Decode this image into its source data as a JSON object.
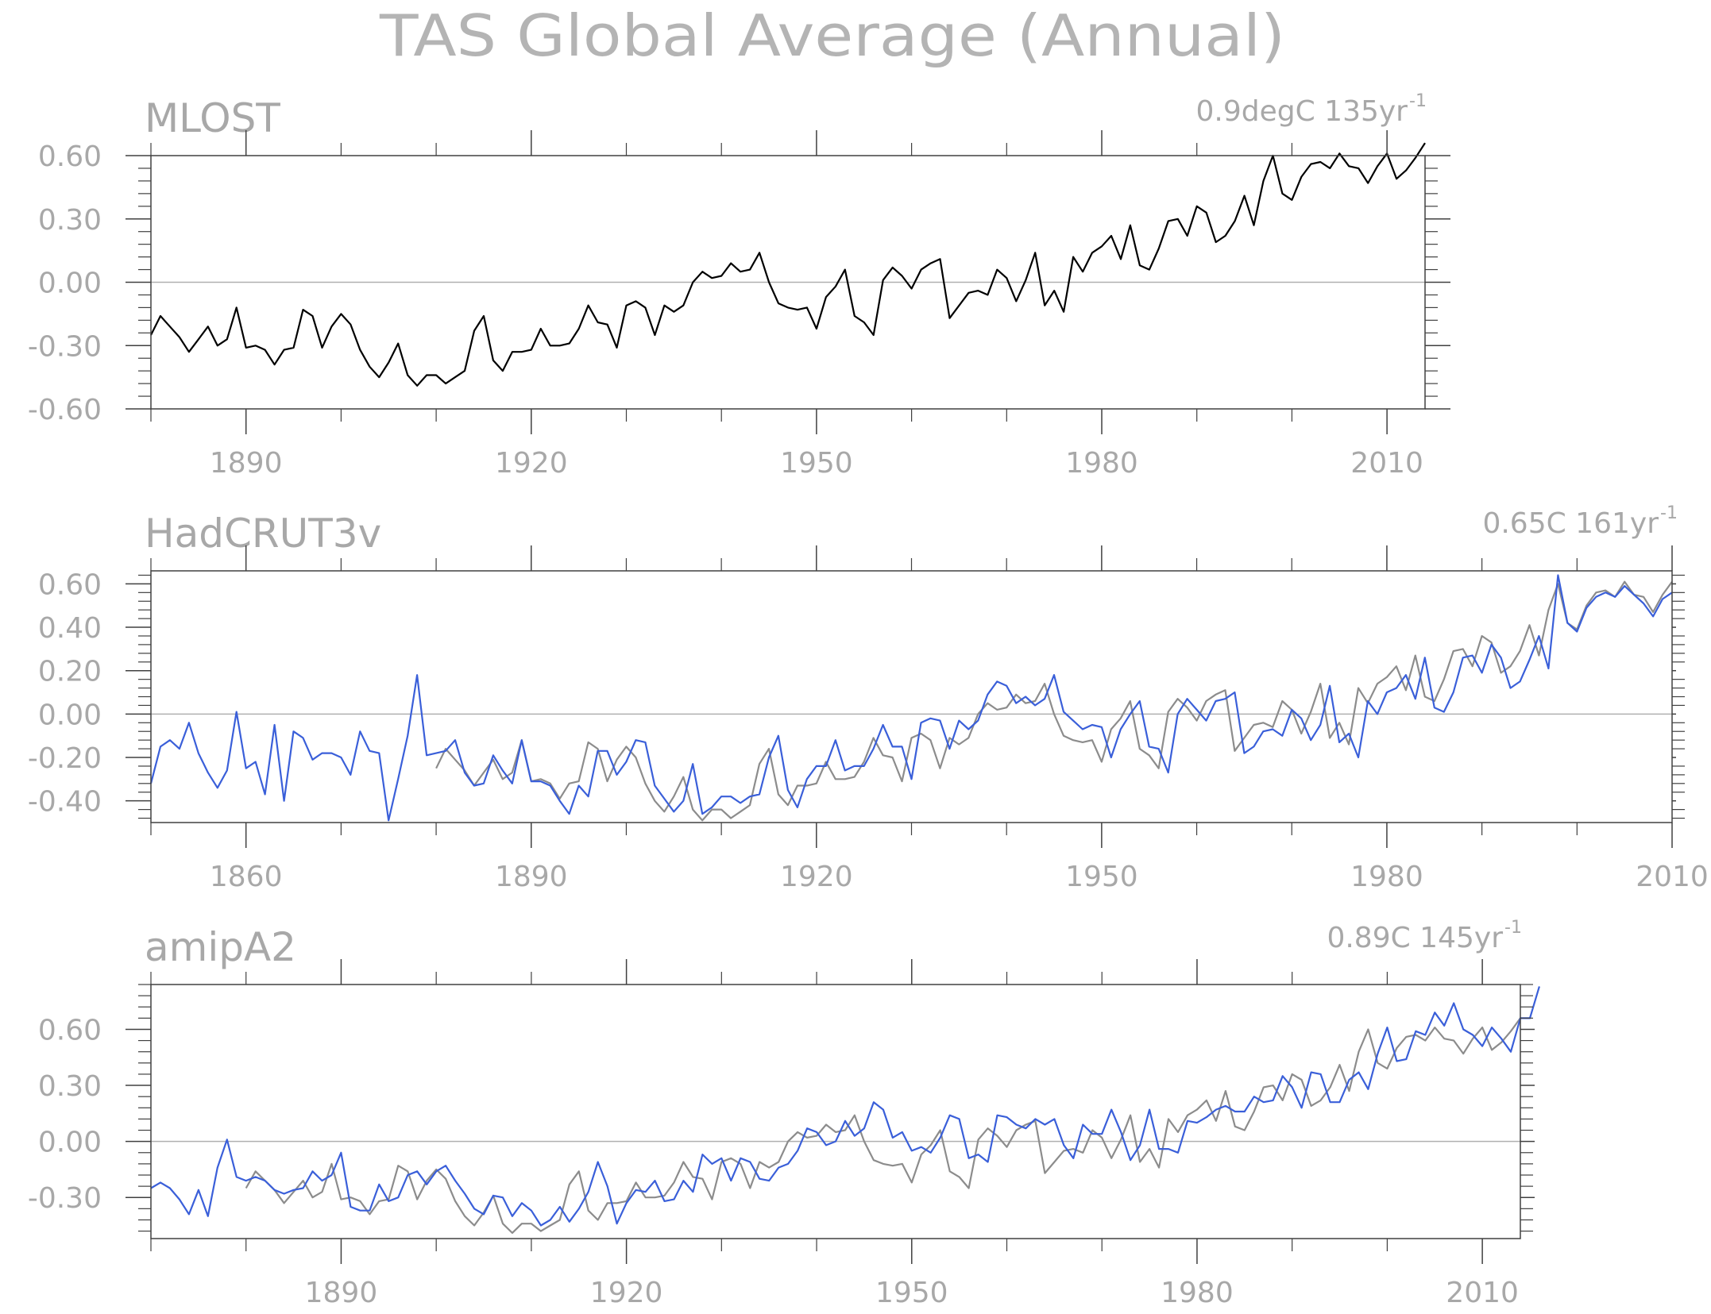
{
  "figure_title": "TAS Global Average (Annual)",
  "colors": {
    "black": "#000000",
    "gray": "#8c8c8c",
    "blue": "#3a5fd9",
    "zero_line": "#b0b0b0",
    "text": "#a8a8a8"
  },
  "chart_data": [
    {
      "type": "line",
      "title": "MLOST",
      "annotation": "0.9degC 135yr",
      "annotation_sup": "-1",
      "xlim": [
        1880,
        2014
      ],
      "ylim": [
        -0.6,
        0.6
      ],
      "xticks": [
        1890,
        1920,
        1950,
        1980,
        2010
      ],
      "xticklabels": [
        "1890",
        "1920",
        "1950",
        "1980",
        "2010"
      ],
      "yticks": [
        -0.6,
        -0.3,
        0.0,
        0.3,
        0.6
      ],
      "yticklabels": [
        "-0.60",
        "-0.30",
        "0.00",
        "0.30",
        "0.60"
      ],
      "series": [
        {
          "color": "#000000",
          "x0": 1880,
          "values": [
            -0.25,
            -0.16,
            -0.21,
            -0.26,
            -0.33,
            -0.27,
            -0.21,
            -0.3,
            -0.27,
            -0.12,
            -0.31,
            -0.3,
            -0.32,
            -0.39,
            -0.32,
            -0.31,
            -0.13,
            -0.16,
            -0.31,
            -0.21,
            -0.15,
            -0.2,
            -0.32,
            -0.4,
            -0.45,
            -0.38,
            -0.29,
            -0.44,
            -0.49,
            -0.44,
            -0.44,
            -0.48,
            -0.45,
            -0.42,
            -0.23,
            -0.16,
            -0.37,
            -0.42,
            -0.33,
            -0.33,
            -0.32,
            -0.22,
            -0.3,
            -0.3,
            -0.29,
            -0.22,
            -0.11,
            -0.19,
            -0.2,
            -0.31,
            -0.11,
            -0.09,
            -0.12,
            -0.25,
            -0.11,
            -0.14,
            -0.11,
            0.0,
            0.05,
            0.02,
            0.03,
            0.09,
            0.05,
            0.06,
            0.14,
            0.0,
            -0.1,
            -0.12,
            -0.13,
            -0.12,
            -0.22,
            -0.07,
            -0.02,
            0.06,
            -0.16,
            -0.19,
            -0.25,
            0.01,
            0.07,
            0.03,
            -0.03,
            0.06,
            0.09,
            0.11,
            -0.17,
            -0.11,
            -0.05,
            -0.04,
            -0.06,
            0.06,
            0.02,
            -0.09,
            0.01,
            0.14,
            -0.11,
            -0.04,
            -0.14,
            0.12,
            0.05,
            0.14,
            0.17,
            0.22,
            0.11,
            0.27,
            0.08,
            0.06,
            0.16,
            0.29,
            0.3,
            0.22,
            0.36,
            0.33,
            0.19,
            0.22,
            0.29,
            0.41,
            0.27,
            0.48,
            0.6,
            0.42,
            0.39,
            0.5,
            0.56,
            0.57,
            0.54,
            0.61,
            0.55,
            0.54,
            0.47,
            0.55,
            0.61,
            0.49,
            0.53,
            0.59,
            0.66
          ]
        }
      ]
    },
    {
      "type": "line",
      "title": "HadCRUT3v",
      "annotation": "0.65C 161yr",
      "annotation_sup": "-1",
      "xlim": [
        1850,
        2010
      ],
      "ylim": [
        -0.5,
        0.66
      ],
      "xticks": [
        1860,
        1890,
        1920,
        1950,
        1980,
        2010
      ],
      "xticklabels": [
        "1860",
        "1890",
        "1920",
        "1950",
        "1980",
        "2010"
      ],
      "yticks": [
        -0.4,
        -0.2,
        0.0,
        0.2,
        0.4,
        0.6
      ],
      "yticklabels": [
        "-0.40",
        "-0.20",
        "0.00",
        "0.20",
        "0.40",
        "0.60"
      ],
      "series": [
        {
          "color": "#8c8c8c",
          "x0": 1880,
          "values": [
            -0.25,
            -0.16,
            -0.21,
            -0.26,
            -0.33,
            -0.27,
            -0.21,
            -0.3,
            -0.27,
            -0.12,
            -0.31,
            -0.3,
            -0.32,
            -0.39,
            -0.32,
            -0.31,
            -0.13,
            -0.16,
            -0.31,
            -0.21,
            -0.15,
            -0.2,
            -0.32,
            -0.4,
            -0.45,
            -0.38,
            -0.29,
            -0.44,
            -0.49,
            -0.44,
            -0.44,
            -0.48,
            -0.45,
            -0.42,
            -0.23,
            -0.16,
            -0.37,
            -0.42,
            -0.33,
            -0.33,
            -0.32,
            -0.22,
            -0.3,
            -0.3,
            -0.29,
            -0.22,
            -0.11,
            -0.19,
            -0.2,
            -0.31,
            -0.11,
            -0.09,
            -0.12,
            -0.25,
            -0.11,
            -0.14,
            -0.11,
            0.0,
            0.05,
            0.02,
            0.03,
            0.09,
            0.05,
            0.06,
            0.14,
            0.0,
            -0.1,
            -0.12,
            -0.13,
            -0.12,
            -0.22,
            -0.07,
            -0.02,
            0.06,
            -0.16,
            -0.19,
            -0.25,
            0.01,
            0.07,
            0.03,
            -0.03,
            0.06,
            0.09,
            0.11,
            -0.17,
            -0.11,
            -0.05,
            -0.04,
            -0.06,
            0.06,
            0.02,
            -0.09,
            0.01,
            0.14,
            -0.11,
            -0.04,
            -0.14,
            0.12,
            0.05,
            0.14,
            0.17,
            0.22,
            0.11,
            0.27,
            0.08,
            0.06,
            0.16,
            0.29,
            0.3,
            0.22,
            0.36,
            0.33,
            0.19,
            0.22,
            0.29,
            0.41,
            0.27,
            0.48,
            0.6,
            0.42,
            0.39,
            0.5,
            0.56,
            0.57,
            0.54,
            0.61,
            0.55,
            0.54,
            0.47,
            0.55,
            0.61
          ]
        },
        {
          "color": "#3a5fd9",
          "x0": 1850,
          "values": [
            -0.32,
            -0.15,
            -0.12,
            -0.16,
            -0.04,
            -0.18,
            -0.27,
            -0.34,
            -0.26,
            0.01,
            -0.25,
            -0.22,
            -0.37,
            -0.05,
            -0.4,
            -0.08,
            -0.11,
            -0.21,
            -0.18,
            -0.18,
            -0.2,
            -0.28,
            -0.08,
            -0.17,
            -0.18,
            -0.49,
            -0.3,
            -0.1,
            0.18,
            -0.19,
            -0.18,
            -0.17,
            -0.12,
            -0.27,
            -0.33,
            -0.32,
            -0.19,
            -0.26,
            -0.32,
            -0.12,
            -0.31,
            -0.31,
            -0.33,
            -0.4,
            -0.46,
            -0.33,
            -0.38,
            -0.17,
            -0.17,
            -0.28,
            -0.22,
            -0.12,
            -0.13,
            -0.33,
            -0.39,
            -0.45,
            -0.4,
            -0.23,
            -0.46,
            -0.43,
            -0.38,
            -0.38,
            -0.41,
            -0.38,
            -0.37,
            -0.2,
            -0.1,
            -0.35,
            -0.43,
            -0.3,
            -0.24,
            -0.24,
            -0.12,
            -0.26,
            -0.24,
            -0.24,
            -0.16,
            -0.05,
            -0.15,
            -0.15,
            -0.3,
            -0.04,
            -0.02,
            -0.03,
            -0.16,
            -0.03,
            -0.07,
            -0.03,
            0.09,
            0.15,
            0.13,
            0.05,
            0.08,
            0.04,
            0.07,
            0.18,
            0.01,
            -0.03,
            -0.07,
            -0.05,
            -0.06,
            -0.2,
            -0.07,
            0.0,
            0.06,
            -0.15,
            -0.16,
            -0.27,
            0.0,
            0.07,
            0.02,
            -0.03,
            0.06,
            0.07,
            0.1,
            -0.18,
            -0.15,
            -0.08,
            -0.07,
            -0.1,
            0.02,
            -0.02,
            -0.12,
            -0.05,
            0.13,
            -0.13,
            -0.09,
            -0.2,
            0.06,
            0.0,
            0.1,
            0.12,
            0.18,
            0.07,
            0.26,
            0.03,
            0.01,
            0.1,
            0.26,
            0.27,
            0.19,
            0.32,
            0.26,
            0.12,
            0.15,
            0.25,
            0.36,
            0.21,
            0.64,
            0.42,
            0.38,
            0.49,
            0.54,
            0.56,
            0.54,
            0.59,
            0.55,
            0.51,
            0.45,
            0.53,
            0.56
          ]
        }
      ]
    },
    {
      "type": "line",
      "title": "amipA2",
      "annotation": "0.89C 145yr",
      "annotation_sup": "-1",
      "xlim": [
        1870,
        2014
      ],
      "ylim": [
        -0.52,
        0.84
      ],
      "xticks": [
        1890,
        1920,
        1950,
        1980,
        2010
      ],
      "xticklabels": [
        "1890",
        "1920",
        "1950",
        "1980",
        "2010"
      ],
      "yticks": [
        -0.3,
        0.0,
        0.3,
        0.6
      ],
      "yticklabels": [
        "-0.30",
        "0.00",
        "0.30",
        "0.60"
      ],
      "series": [
        {
          "color": "#8c8c8c",
          "x0": 1880,
          "values": [
            -0.25,
            -0.16,
            -0.21,
            -0.26,
            -0.33,
            -0.27,
            -0.21,
            -0.3,
            -0.27,
            -0.12,
            -0.31,
            -0.3,
            -0.32,
            -0.39,
            -0.32,
            -0.31,
            -0.13,
            -0.16,
            -0.31,
            -0.21,
            -0.15,
            -0.2,
            -0.32,
            -0.4,
            -0.45,
            -0.38,
            -0.29,
            -0.44,
            -0.49,
            -0.44,
            -0.44,
            -0.48,
            -0.45,
            -0.42,
            -0.23,
            -0.16,
            -0.37,
            -0.42,
            -0.33,
            -0.33,
            -0.32,
            -0.22,
            -0.3,
            -0.3,
            -0.29,
            -0.22,
            -0.11,
            -0.19,
            -0.2,
            -0.31,
            -0.11,
            -0.09,
            -0.12,
            -0.25,
            -0.11,
            -0.14,
            -0.11,
            0.0,
            0.05,
            0.02,
            0.03,
            0.09,
            0.05,
            0.06,
            0.14,
            0.0,
            -0.1,
            -0.12,
            -0.13,
            -0.12,
            -0.22,
            -0.07,
            -0.02,
            0.06,
            -0.16,
            -0.19,
            -0.25,
            0.01,
            0.07,
            0.03,
            -0.03,
            0.06,
            0.09,
            0.11,
            -0.17,
            -0.11,
            -0.05,
            -0.04,
            -0.06,
            0.06,
            0.02,
            -0.09,
            0.01,
            0.14,
            -0.11,
            -0.04,
            -0.14,
            0.12,
            0.05,
            0.14,
            0.17,
            0.22,
            0.11,
            0.27,
            0.08,
            0.06,
            0.16,
            0.29,
            0.3,
            0.22,
            0.36,
            0.33,
            0.19,
            0.22,
            0.29,
            0.41,
            0.27,
            0.48,
            0.6,
            0.42,
            0.39,
            0.5,
            0.56,
            0.57,
            0.54,
            0.61,
            0.55,
            0.54,
            0.47,
            0.55,
            0.61,
            0.49,
            0.53,
            0.59,
            0.66
          ]
        },
        {
          "color": "#3a5fd9",
          "x0": 1870,
          "values": [
            -0.25,
            -0.22,
            -0.25,
            -0.31,
            -0.39,
            -0.26,
            -0.4,
            -0.14,
            0.01,
            -0.19,
            -0.21,
            -0.19,
            -0.21,
            -0.26,
            -0.28,
            -0.26,
            -0.25,
            -0.16,
            -0.21,
            -0.18,
            -0.06,
            -0.35,
            -0.37,
            -0.37,
            -0.23,
            -0.32,
            -0.3,
            -0.18,
            -0.16,
            -0.23,
            -0.16,
            -0.13,
            -0.21,
            -0.28,
            -0.36,
            -0.39,
            -0.29,
            -0.3,
            -0.4,
            -0.33,
            -0.37,
            -0.45,
            -0.42,
            -0.35,
            -0.43,
            -0.36,
            -0.27,
            -0.11,
            -0.24,
            -0.44,
            -0.33,
            -0.26,
            -0.27,
            -0.21,
            -0.32,
            -0.31,
            -0.21,
            -0.27,
            -0.07,
            -0.12,
            -0.09,
            -0.21,
            -0.09,
            -0.11,
            -0.2,
            -0.21,
            -0.14,
            -0.12,
            -0.05,
            0.07,
            0.05,
            -0.02,
            0.0,
            0.11,
            0.03,
            0.07,
            0.21,
            0.17,
            0.02,
            0.05,
            -0.05,
            -0.03,
            -0.06,
            0.02,
            0.14,
            0.12,
            -0.09,
            -0.07,
            -0.11,
            0.14,
            0.13,
            0.09,
            0.07,
            0.12,
            0.09,
            0.12,
            -0.02,
            -0.09,
            0.09,
            0.04,
            0.04,
            0.17,
            0.05,
            -0.1,
            -0.02,
            0.17,
            -0.04,
            -0.04,
            -0.06,
            0.11,
            0.1,
            0.13,
            0.17,
            0.19,
            0.16,
            0.16,
            0.24,
            0.21,
            0.22,
            0.35,
            0.29,
            0.18,
            0.37,
            0.36,
            0.21,
            0.21,
            0.33,
            0.37,
            0.28,
            0.47,
            0.61,
            0.43,
            0.44,
            0.59,
            0.57,
            0.69,
            0.62,
            0.74,
            0.6,
            0.57,
            0.51,
            0.61,
            0.55,
            0.48,
            0.66,
            0.66,
            0.83
          ]
        }
      ]
    }
  ]
}
